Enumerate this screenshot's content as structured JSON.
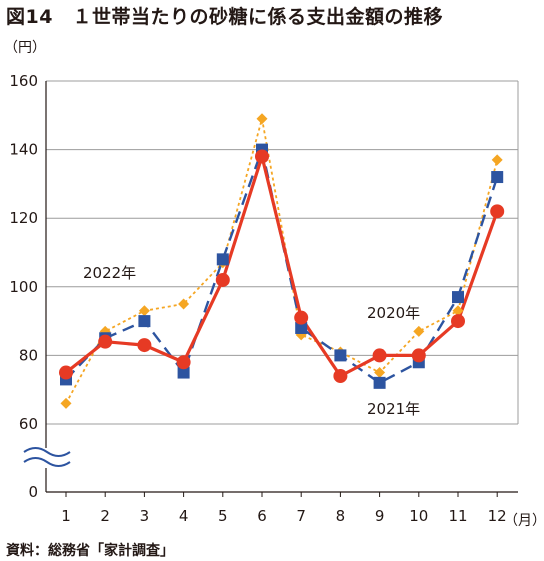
{
  "title": "図14　１世帯当たりの砂糖に係る支出金額の推移",
  "source": "資料：総務省「家計調査」",
  "colors": {
    "s2020": "#f5a623",
    "s2021": "#2d54a0",
    "s2022": "#e63a24",
    "grid": "#9c9c9c",
    "axis": "#231815"
  },
  "chart_data": {
    "type": "line",
    "x": [
      1,
      2,
      3,
      4,
      5,
      6,
      7,
      8,
      9,
      10,
      11,
      12
    ],
    "xlabel": "（月）",
    "ylabel": "（円）",
    "yticks": [
      0,
      60,
      80,
      100,
      120,
      140,
      160
    ],
    "ylim": [
      60,
      160
    ],
    "axis_break": true,
    "grid": true,
    "series": [
      {
        "name": "2020年",
        "marker": "diamond",
        "dash": "dotted",
        "values": [
          66,
          87,
          93,
          95,
          107,
          149,
          86,
          81,
          75,
          87,
          93,
          137
        ]
      },
      {
        "name": "2021年",
        "marker": "square",
        "dash": "dashed",
        "values": [
          73,
          85,
          90,
          75,
          108,
          140,
          88,
          80,
          72,
          78,
          97,
          132
        ]
      },
      {
        "name": "2022年",
        "marker": "circle",
        "dash": "solid",
        "values": [
          75,
          84,
          83,
          78,
          102,
          138,
          91,
          74,
          80,
          80,
          90,
          122
        ]
      }
    ]
  }
}
